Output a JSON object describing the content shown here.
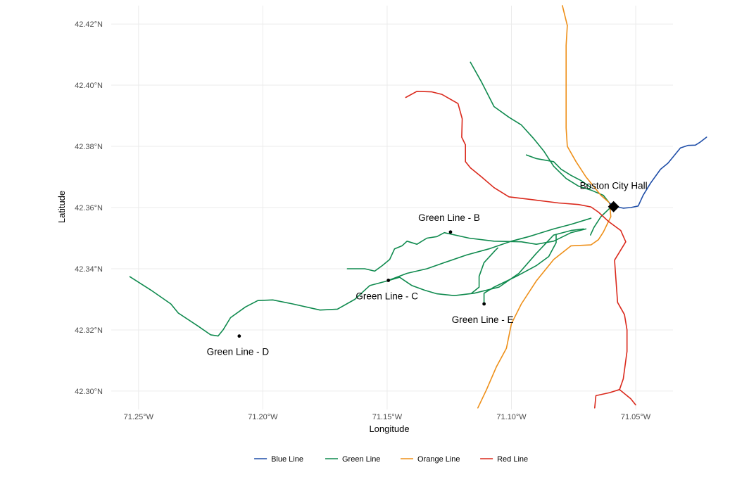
{
  "chart_data": {
    "type": "map",
    "xlabel": "Longitude",
    "ylabel": "Latitude",
    "xlim": [
      -71.261,
      -71.035
    ],
    "ylim": [
      42.294,
      42.426
    ],
    "grid": true,
    "legend_position": "bottom",
    "x_ticks": [
      {
        "value": -71.25,
        "label": "71.25°W"
      },
      {
        "value": -71.2,
        "label": "71.20°W"
      },
      {
        "value": -71.15,
        "label": "71.15°W"
      },
      {
        "value": -71.1,
        "label": "71.10°W"
      },
      {
        "value": -71.05,
        "label": "71.05°W"
      }
    ],
    "y_ticks": [
      {
        "value": 42.3,
        "label": "42.30°N"
      },
      {
        "value": 42.32,
        "label": "42.32°N"
      },
      {
        "value": 42.34,
        "label": "42.34°N"
      },
      {
        "value": 42.36,
        "label": "42.36°N"
      },
      {
        "value": 42.38,
        "label": "42.38°N"
      },
      {
        "value": 42.4,
        "label": "42.40°N"
      },
      {
        "value": 42.42,
        "label": "42.42°N"
      }
    ],
    "series": [
      {
        "name": "Blue Line",
        "color": "#1F4EA8",
        "lines": [
          [
            [
              -71.0605,
              42.3614
            ],
            [
              -71.058,
              42.3603
            ],
            [
              -71.055,
              42.3598
            ],
            [
              -71.052,
              42.36
            ],
            [
              -71.049,
              42.3605
            ],
            [
              -71.047,
              42.364
            ],
            [
              -71.044,
              42.368
            ],
            [
              -71.04,
              42.3725
            ],
            [
              -71.037,
              42.3745
            ],
            [
              -71.035,
              42.3765
            ],
            [
              -71.032,
              42.3795
            ],
            [
              -71.029,
              42.3803
            ],
            [
              -71.026,
              42.3804
            ],
            [
              -71.024,
              42.3814
            ],
            [
              -71.0215,
              42.383
            ]
          ]
        ]
      },
      {
        "name": "Green Line",
        "color": "#0F8A4E",
        "lines": [
          [
            [
              -71.2535,
              42.3374
            ],
            [
              -71.245,
              42.333
            ],
            [
              -71.237,
              42.3285
            ],
            [
              -71.234,
              42.3255
            ],
            [
              -71.226,
              42.3212
            ],
            [
              -71.221,
              42.3184
            ],
            [
              -71.218,
              42.318
            ],
            [
              -71.216,
              42.32
            ],
            [
              -71.213,
              42.324
            ],
            [
              -71.207,
              42.3275
            ],
            [
              -71.202,
              42.3296
            ],
            [
              -71.196,
              42.3298
            ],
            [
              -71.188,
              42.3285
            ],
            [
              -71.177,
              42.3265
            ],
            [
              -71.17,
              42.3268
            ],
            [
              -71.163,
              42.33
            ],
            [
              -71.157,
              42.3345
            ],
            [
              -71.15,
              42.336
            ],
            [
              -71.145,
              42.3372
            ],
            [
              -71.14,
              42.3345
            ],
            [
              -71.135,
              42.333
            ],
            [
              -71.13,
              42.3318
            ],
            [
              -71.123,
              42.3312
            ],
            [
              -71.115,
              42.332
            ],
            [
              -71.105,
              42.334
            ],
            [
              -71.097,
              42.3385
            ],
            [
              -71.09,
              42.345
            ],
            [
              -71.083,
              42.351
            ],
            [
              -71.076,
              42.3525
            ],
            [
              -71.071,
              42.353
            ]
          ],
          [
            [
              -71.166,
              42.34
            ],
            [
              -71.159,
              42.34
            ],
            [
              -71.155,
              42.3392
            ],
            [
              -71.152,
              42.341
            ],
            [
              -71.149,
              42.343
            ],
            [
              -71.147,
              42.3465
            ],
            [
              -71.144,
              42.3475
            ],
            [
              -71.142,
              42.349
            ],
            [
              -71.138,
              42.348
            ],
            [
              -71.134,
              42.35
            ],
            [
              -71.13,
              42.3505
            ],
            [
              -71.127,
              42.3518
            ],
            [
              -71.117,
              42.35
            ],
            [
              -71.107,
              42.349
            ],
            [
              -71.096,
              42.3488
            ],
            [
              -71.09,
              42.348
            ],
            [
              -71.083,
              42.349
            ],
            [
              -71.076,
              42.3518
            ],
            [
              -71.07,
              42.353
            ]
          ],
          [
            [
              -71.1495,
              42.3362
            ],
            [
              -71.142,
              42.3385
            ],
            [
              -71.134,
              42.34
            ],
            [
              -71.127,
              42.342
            ],
            [
              -71.118,
              42.3445
            ],
            [
              -71.109,
              42.3465
            ],
            [
              -71.1,
              42.349
            ],
            [
              -71.093,
              42.3505
            ],
            [
              -71.083,
              42.353
            ],
            [
              -71.076,
              42.3545
            ],
            [
              -71.068,
              42.3565
            ]
          ],
          [
            [
              -71.111,
              42.3285
            ],
            [
              -71.111,
              42.332
            ],
            [
              -71.107,
              42.334
            ],
            [
              -71.098,
              42.3375
            ],
            [
              -71.09,
              42.341
            ],
            [
              -71.085,
              42.344
            ],
            [
              -71.082,
              42.3485
            ],
            [
              -71.082,
              42.351
            ]
          ],
          [
            [
              -71.1055,
              42.3468
            ],
            [
              -71.1065,
              42.346
            ],
            [
              -71.111,
              42.342
            ],
            [
              -71.113,
              42.3375
            ],
            [
              -71.113,
              42.334
            ],
            [
              -71.116,
              42.332
            ]
          ],
          [
            [
              -71.0595,
              42.3605
            ],
            [
              -71.064,
              42.357
            ],
            [
              -71.0668,
              42.3535
            ],
            [
              -71.0682,
              42.351
            ]
          ],
          [
            [
              -71.1165,
              42.4075
            ],
            [
              -71.112,
              42.401
            ],
            [
              -71.107,
              42.393
            ],
            [
              -71.101,
              42.3895
            ],
            [
              -71.096,
              42.387
            ],
            [
              -71.091,
              42.3825
            ],
            [
              -71.087,
              42.3785
            ],
            [
              -71.083,
              42.3735
            ],
            [
              -71.078,
              42.3695
            ],
            [
              -71.073,
              42.367
            ],
            [
              -71.068,
              42.3657
            ],
            [
              -71.063,
              42.364
            ],
            [
              -71.0605,
              42.3614
            ]
          ],
          [
            [
              -71.094,
              42.3772
            ],
            [
              -71.09,
              42.376
            ],
            [
              -71.083,
              42.375
            ],
            [
              -71.08,
              42.3725
            ],
            [
              -71.076,
              42.3705
            ],
            [
              -71.072,
              42.3688
            ],
            [
              -71.068,
              42.3665
            ]
          ]
        ]
      },
      {
        "name": "Orange Line",
        "color": "#EE8F18",
        "lines": [
          [
            [
              -71.0775,
              42.4195
            ],
            [
              -71.0795,
              42.426
            ]
          ],
          [
            [
              -71.0775,
              42.4195
            ],
            [
              -71.078,
              42.413
            ],
            [
              -71.078,
              42.404
            ],
            [
              -71.078,
              42.395
            ],
            [
              -71.078,
              42.386
            ],
            [
              -71.0775,
              42.38
            ],
            [
              -71.074,
              42.375
            ],
            [
              -71.07,
              42.37
            ],
            [
              -71.064,
              42.364
            ],
            [
              -71.0605,
              42.3615
            ],
            [
              -71.06,
              42.357
            ],
            [
              -71.063,
              42.352
            ],
            [
              -71.065,
              42.3495
            ],
            [
              -71.068,
              42.3478
            ],
            [
              -71.076,
              42.3475
            ],
            [
              -71.083,
              42.343
            ],
            [
              -71.09,
              42.336
            ],
            [
              -71.096,
              42.3285
            ],
            [
              -71.1,
              42.322
            ],
            [
              -71.102,
              42.314
            ],
            [
              -71.106,
              42.308
            ],
            [
              -71.11,
              42.3005
            ],
            [
              -71.1135,
              42.2945
            ]
          ]
        ]
      },
      {
        "name": "Red Line",
        "color": "#DA291C",
        "lines": [
          [
            [
              -71.1425,
              42.396
            ],
            [
              -71.138,
              42.398
            ],
            [
              -71.132,
              42.3978
            ],
            [
              -71.128,
              42.397
            ],
            [
              -71.1215,
              42.394
            ],
            [
              -71.1198,
              42.389
            ],
            [
              -71.12,
              42.383
            ],
            [
              -71.1185,
              42.3805
            ],
            [
              -71.1185,
              42.375
            ],
            [
              -71.1165,
              42.373
            ],
            [
              -71.112,
              42.37
            ],
            [
              -71.107,
              42.3665
            ],
            [
              -71.101,
              42.3635
            ],
            [
              -71.091,
              42.3625
            ],
            [
              -71.081,
              42.3615
            ],
            [
              -71.073,
              42.361
            ],
            [
              -71.068,
              42.3602
            ],
            [
              -71.065,
              42.3585
            ],
            [
              -71.061,
              42.3555
            ],
            [
              -71.056,
              42.3525
            ],
            [
              -71.054,
              42.3488
            ],
            [
              -71.0585,
              42.3428
            ],
            [
              -71.058,
              42.337
            ],
            [
              -71.0573,
              42.329
            ],
            [
              -71.0545,
              42.325
            ],
            [
              -71.0535,
              42.32
            ],
            [
              -71.0535,
              42.313
            ],
            [
              -71.055,
              42.304
            ],
            [
              -71.0565,
              42.3005
            ],
            [
              -71.0605,
              42.2995
            ],
            [
              -71.066,
              42.2985
            ],
            [
              -71.0665,
              42.2945
            ]
          ],
          [
            [
              -71.0565,
              42.3005
            ],
            [
              -71.052,
              42.2975
            ],
            [
              -71.05,
              42.2955
            ]
          ]
        ]
      }
    ],
    "points": [
      {
        "name": "Green Line - B",
        "lon": -71.1245,
        "lat": 42.352,
        "label": "Green Line - B",
        "label_pos": "above"
      },
      {
        "name": "Green Line - C",
        "lon": -71.1495,
        "lat": 42.3362,
        "label": "Green Line - C",
        "label_pos": "below"
      },
      {
        "name": "Green Line - D",
        "lon": -71.2095,
        "lat": 42.318,
        "label": "Green Line - D",
        "label_pos": "below"
      },
      {
        "name": "Green Line - E",
        "lon": -71.111,
        "lat": 42.3285,
        "label": "Green Line - E",
        "label_pos": "below"
      }
    ],
    "landmark": {
      "name": "Boston City Hall",
      "label": "Boston City Hall",
      "lon": -71.0589,
      "lat": 42.3603,
      "marker": "diamond"
    },
    "legend": [
      {
        "label": "Blue Line",
        "color": "#1F4EA8"
      },
      {
        "label": "Green Line",
        "color": "#0F8A4E"
      },
      {
        "label": "Orange Line",
        "color": "#EE8F18"
      },
      {
        "label": "Red Line",
        "color": "#DA291C"
      }
    ]
  }
}
